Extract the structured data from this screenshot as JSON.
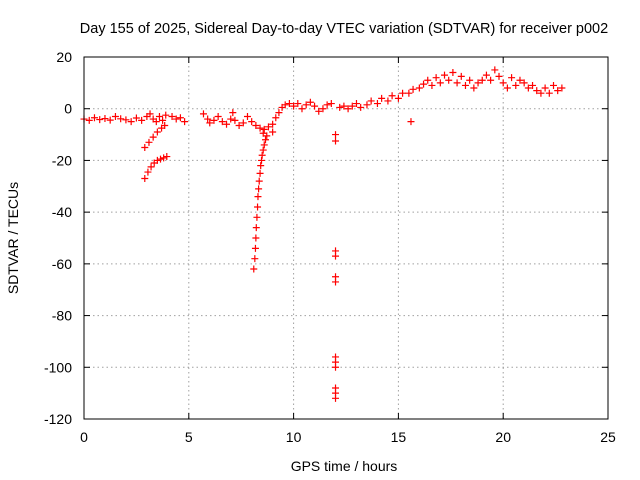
{
  "chart_data": {
    "type": "scatter",
    "title": "Day 155 of 2025, Sidereal Day-to-day VTEC variation (SDTVAR) for receiver p002",
    "xlabel": "GPS time / hours",
    "ylabel": "SDTVAR / TECUs",
    "xlim": [
      0,
      25
    ],
    "ylim": [
      -120,
      20
    ],
    "xticks": [
      0,
      5,
      10,
      15,
      20,
      25
    ],
    "xtick_labels": [
      "0",
      "5",
      "10",
      "15",
      "20",
      "25"
    ],
    "yticks": [
      -120,
      -100,
      -80,
      -60,
      -40,
      -20,
      0,
      20
    ],
    "ytick_labels": [
      "-120",
      "-100",
      "-80",
      "-60",
      "-40",
      "-20",
      "0",
      "20"
    ],
    "grid": true,
    "marker": "plus",
    "color": "#ff0000",
    "series": [
      {
        "name": "SDTVAR",
        "points": [
          [
            0.0,
            -4.0
          ],
          [
            0.25,
            -4.5
          ],
          [
            0.5,
            -3.5
          ],
          [
            0.75,
            -4.2
          ],
          [
            1.0,
            -3.8
          ],
          [
            1.25,
            -4.4
          ],
          [
            1.5,
            -3.0
          ],
          [
            1.75,
            -3.9
          ],
          [
            2.0,
            -4.3
          ],
          [
            2.25,
            -5.0
          ],
          [
            2.5,
            -3.6
          ],
          [
            2.75,
            -4.5
          ],
          [
            3.0,
            -3.0
          ],
          [
            3.15,
            -2.0
          ],
          [
            3.3,
            -4.0
          ],
          [
            3.45,
            -5.0
          ],
          [
            3.6,
            -3.0
          ],
          [
            3.75,
            -4.5
          ],
          [
            3.9,
            -2.5
          ],
          [
            2.9,
            -15.0
          ],
          [
            3.1,
            -13.0
          ],
          [
            3.3,
            -11.0
          ],
          [
            3.5,
            -9.0
          ],
          [
            3.7,
            -7.5
          ],
          [
            3.85,
            -6.5
          ],
          [
            2.9,
            -27.0
          ],
          [
            3.05,
            -24.5
          ],
          [
            3.2,
            -22.5
          ],
          [
            3.35,
            -21.0
          ],
          [
            3.5,
            -20.0
          ],
          [
            3.65,
            -19.5
          ],
          [
            3.8,
            -19.0
          ],
          [
            3.95,
            -18.5
          ],
          [
            4.2,
            -3.0
          ],
          [
            4.4,
            -4.0
          ],
          [
            4.6,
            -3.5
          ],
          [
            4.8,
            -5.0
          ],
          [
            5.7,
            -2.0
          ],
          [
            5.9,
            -4.0
          ],
          [
            6.0,
            -5.5
          ],
          [
            6.2,
            -4.5
          ],
          [
            6.4,
            -3.0
          ],
          [
            6.6,
            -5.0
          ],
          [
            6.8,
            -6.0
          ],
          [
            7.0,
            -4.0
          ],
          [
            7.1,
            -1.5
          ],
          [
            7.2,
            -4.5
          ],
          [
            7.4,
            -6.5
          ],
          [
            7.6,
            -5.5
          ],
          [
            7.8,
            -3.0
          ],
          [
            8.0,
            -5.0
          ],
          [
            8.2,
            -6.5
          ],
          [
            8.4,
            -7.5
          ],
          [
            8.6,
            -8.0
          ],
          [
            8.8,
            -7.0
          ],
          [
            9.0,
            -9.0
          ],
          [
            8.55,
            -9.5
          ],
          [
            8.1,
            -62.0
          ],
          [
            8.15,
            -58.0
          ],
          [
            8.18,
            -54.0
          ],
          [
            8.2,
            -50.0
          ],
          [
            8.22,
            -46.0
          ],
          [
            8.25,
            -42.0
          ],
          [
            8.28,
            -38.0
          ],
          [
            8.3,
            -34.0
          ],
          [
            8.33,
            -31.0
          ],
          [
            8.36,
            -28.0
          ],
          [
            8.4,
            -25.0
          ],
          [
            8.43,
            -22.0
          ],
          [
            8.47,
            -20.0
          ],
          [
            8.5,
            -18.0
          ],
          [
            8.55,
            -16.0
          ],
          [
            8.6,
            -14.0
          ],
          [
            8.66,
            -12.0
          ],
          [
            8.72,
            -10.5
          ],
          [
            9.0,
            -6.0
          ],
          [
            9.15,
            -3.5
          ],
          [
            9.3,
            -1.5
          ],
          [
            9.45,
            0.5
          ],
          [
            9.6,
            1.5
          ],
          [
            9.8,
            2.0
          ],
          [
            10.0,
            1.0
          ],
          [
            10.2,
            2.0
          ],
          [
            10.4,
            0.0
          ],
          [
            10.6,
            1.5
          ],
          [
            10.8,
            2.5
          ],
          [
            11.0,
            1.0
          ],
          [
            11.2,
            -1.0
          ],
          [
            11.4,
            0.0
          ],
          [
            11.6,
            1.5
          ],
          [
            11.8,
            2.0
          ],
          [
            12.0,
            -10.0
          ],
          [
            12.0,
            -12.5
          ],
          [
            12.0,
            -55.0
          ],
          [
            12.0,
            -57.0
          ],
          [
            12.0,
            -65.0
          ],
          [
            12.0,
            -67.0
          ],
          [
            12.0,
            -96.0
          ],
          [
            12.0,
            -98.0
          ],
          [
            12.0,
            -100.0
          ],
          [
            12.0,
            -108.0
          ],
          [
            12.0,
            -110.0
          ],
          [
            12.0,
            -112.0
          ],
          [
            12.2,
            0.5
          ],
          [
            12.4,
            1.0
          ],
          [
            12.6,
            0.0
          ],
          [
            12.8,
            1.0
          ],
          [
            13.0,
            2.0
          ],
          [
            13.2,
            0.5
          ],
          [
            13.5,
            1.5
          ],
          [
            13.7,
            3.0
          ],
          [
            14.0,
            2.0
          ],
          [
            14.2,
            4.0
          ],
          [
            14.5,
            3.0
          ],
          [
            14.7,
            5.0
          ],
          [
            15.0,
            4.0
          ],
          [
            15.2,
            6.0
          ],
          [
            15.5,
            6.0
          ],
          [
            15.7,
            7.5
          ],
          [
            15.6,
            -5.0
          ],
          [
            16.0,
            8.0
          ],
          [
            16.2,
            9.5
          ],
          [
            16.4,
            11.0
          ],
          [
            16.6,
            9.0
          ],
          [
            16.8,
            12.0
          ],
          [
            17.0,
            10.0
          ],
          [
            17.2,
            13.0
          ],
          [
            17.4,
            11.0
          ],
          [
            17.6,
            14.0
          ],
          [
            17.8,
            10.0
          ],
          [
            18.0,
            12.5
          ],
          [
            18.2,
            9.0
          ],
          [
            18.4,
            11.0
          ],
          [
            18.6,
            8.0
          ],
          [
            18.8,
            10.0
          ],
          [
            19.0,
            11.0
          ],
          [
            19.2,
            13.0
          ],
          [
            19.4,
            11.0
          ],
          [
            19.6,
            15.0
          ],
          [
            19.8,
            12.5
          ],
          [
            20.0,
            10.0
          ],
          [
            20.2,
            8.0
          ],
          [
            20.4,
            12.0
          ],
          [
            20.6,
            9.0
          ],
          [
            20.8,
            11.0
          ],
          [
            21.0,
            10.0
          ],
          [
            21.2,
            8.0
          ],
          [
            21.4,
            9.0
          ],
          [
            21.6,
            7.0
          ],
          [
            21.8,
            6.0
          ],
          [
            22.0,
            8.0
          ],
          [
            22.2,
            6.0
          ],
          [
            22.4,
            9.0
          ],
          [
            22.6,
            7.0
          ],
          [
            22.8,
            8.0
          ]
        ]
      }
    ]
  }
}
